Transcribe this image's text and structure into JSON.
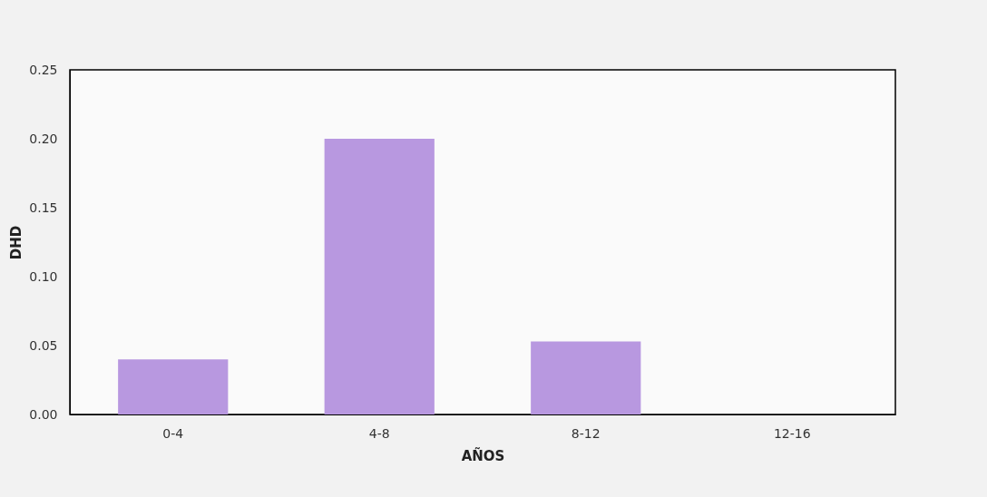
{
  "chart_data": {
    "type": "bar",
    "xlabel": "AÑOS",
    "ylabel": "DHD",
    "categories": [
      "0-4",
      "4-8",
      "8-12",
      "12-16"
    ],
    "values": [
      0.04,
      0.2,
      0.053,
      0
    ],
    "color": "#b898e0",
    "ylim": [
      0,
      0.25
    ],
    "yticks": [
      {
        "value": 0,
        "label": "0.00"
      },
      {
        "value": 0.05,
        "label": "0.05"
      },
      {
        "value": 0.1,
        "label": "0.10"
      },
      {
        "value": 0.15,
        "label": "0.15"
      },
      {
        "value": 0.2,
        "label": "0.20"
      },
      {
        "value": 0.25,
        "label": "0.25"
      }
    ],
    "grid": false
  }
}
